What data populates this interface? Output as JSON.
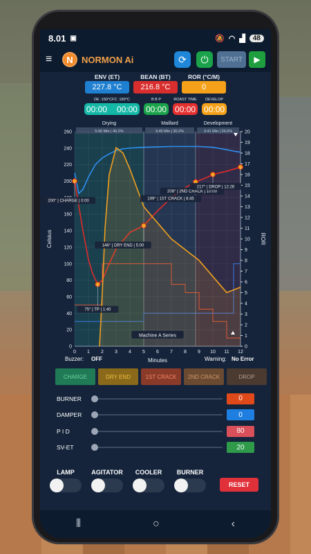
{
  "status": {
    "time": "8.01",
    "battery": "48"
  },
  "app": {
    "title": "NORMON Ai",
    "logo_letter": "N",
    "start_label": "START"
  },
  "readouts": [
    {
      "label": "ENV (ET)",
      "value": "227.8 °C",
      "color": "#1f7fd0"
    },
    {
      "label": "BEAN (BT)",
      "value": "216.8 °C",
      "color": "#d92e2e"
    },
    {
      "label": "ROR (°C/M)",
      "value": "0",
      "color": "#f5a21a"
    }
  ],
  "timers": [
    {
      "label": "DE :150°CFC :190°C",
      "values": [
        "00:00",
        "00:00"
      ],
      "color": "#15b8a6"
    },
    {
      "label": "B B P",
      "values": [
        "00:00"
      ],
      "color": "#1aa34a"
    },
    {
      "label": "ROAST TIME",
      "values": [
        "00:00"
      ],
      "color": "#e53030"
    },
    {
      "label": "DEVELOP",
      "values": [
        "00:00"
      ],
      "color": "#f5a21a"
    }
  ],
  "chart_data": {
    "type": "line",
    "phases": [
      {
        "name": "Drying",
        "info": "5:00 Min | 40.2%"
      },
      {
        "name": "Maillard",
        "info": "3:45 Min | 30.2%"
      },
      {
        "name": "Development",
        "info": "3:41 Min | 29.6%"
      }
    ],
    "xlabel": "Minutes",
    "ylabel": "Celsius",
    "y2label": "ROR",
    "xlim": [
      0,
      12
    ],
    "ylim": [
      0,
      260
    ],
    "y2lim": [
      0,
      20
    ],
    "x_ticks": [
      0,
      1,
      2,
      3,
      4,
      5,
      6,
      7,
      8,
      9,
      10,
      11,
      12
    ],
    "y_ticks": [
      0,
      20,
      40,
      60,
      80,
      100,
      120,
      140,
      160,
      180,
      200,
      220,
      240,
      260
    ],
    "y2_ticks": [
      0,
      1,
      2,
      3,
      4,
      5,
      6,
      7,
      8,
      9,
      10,
      11,
      12,
      13,
      14,
      15,
      16,
      17,
      18,
      19,
      20
    ],
    "series": [
      {
        "name": "ET",
        "color": "#2f8ff0",
        "x": [
          0,
          0.3,
          0.6,
          1,
          1.5,
          2,
          2.5,
          3,
          3.5,
          4,
          5,
          6,
          7,
          8,
          9,
          10,
          11,
          11.6,
          12
        ],
        "y": [
          210,
          185,
          190,
          205,
          220,
          228,
          233,
          237,
          239,
          240,
          241,
          241.5,
          242,
          242,
          242,
          241,
          238,
          236,
          235
        ]
      },
      {
        "name": "BT",
        "color": "#e02a2a",
        "x": [
          0,
          0.3,
          0.6,
          1,
          1.3,
          1.67,
          2,
          2.5,
          3,
          4,
          5,
          6,
          7,
          8,
          8.75,
          9.5,
          10,
          11,
          12
        ],
        "y": [
          200,
          170,
          140,
          105,
          88,
          75,
          80,
          100,
          118,
          138,
          146,
          164,
          180,
          192,
          199,
          204,
          208,
          212,
          217
        ]
      },
      {
        "name": "ROR",
        "color": "#f0a020",
        "axis": "y2",
        "x": [
          1.8,
          2,
          2.2,
          2.5,
          3,
          3.5,
          4,
          5,
          6,
          7,
          8,
          9,
          10,
          11,
          12
        ],
        "y": [
          0,
          5,
          11,
          16,
          18.5,
          18,
          16.5,
          13,
          11.5,
          10,
          9,
          8,
          6.5,
          5,
          5.5
        ]
      }
    ],
    "annotations": [
      {
        "text": "200° | CHARGE | 0:00",
        "x": 0,
        "y": 200
      },
      {
        "text": "75° | TP | 1:40",
        "x": 1.67,
        "y": 75
      },
      {
        "text": "146° | DRY END | 5:00",
        "x": 5,
        "y": 146
      },
      {
        "text": "199° | 1ST CRACK | 8:45",
        "x": 8.75,
        "y": 199
      },
      {
        "text": "208° | 2ND CRACK | 10:00",
        "x": 10,
        "y": 208
      },
      {
        "text": "217° | DROP | 12:26",
        "x": 12,
        "y": 217
      }
    ],
    "series_label": "Machine A Series"
  },
  "labels": {
    "buzzer_key": "Buzzer:",
    "buzzer_val": "OFF",
    "warning_key": "Warning:",
    "warning_val": "No Error"
  },
  "phase_buttons": [
    {
      "label": "CHARGE",
      "bg": "#1f7a55",
      "fg": "#6fd2a4"
    },
    {
      "label": "DRY END",
      "bg": "#8a6a1a",
      "fg": "#f0c040"
    },
    {
      "label": "1ST CRACK",
      "bg": "#8a3a28",
      "fg": "#f08a6a"
    },
    {
      "label": "2ND CRACK",
      "bg": "#6a4a30",
      "fg": "#d29a70"
    },
    {
      "label": "DROP",
      "bg": "#4a3a30",
      "fg": "#b0a090"
    }
  ],
  "sliders": [
    {
      "name": "BURNER",
      "value": "0",
      "color": "#e04a1a"
    },
    {
      "name": "DAMPER",
      "value": "0",
      "color": "#1f7fe0"
    },
    {
      "name": "P I D",
      "value": "80",
      "color": "#d9505a"
    },
    {
      "name": "SV-ET",
      "value": "20",
      "color": "#2e9a4a"
    }
  ],
  "toggles": [
    "LAMP",
    "AGITATOR",
    "COOLER",
    "BURNER"
  ],
  "reset_label": "RESET"
}
